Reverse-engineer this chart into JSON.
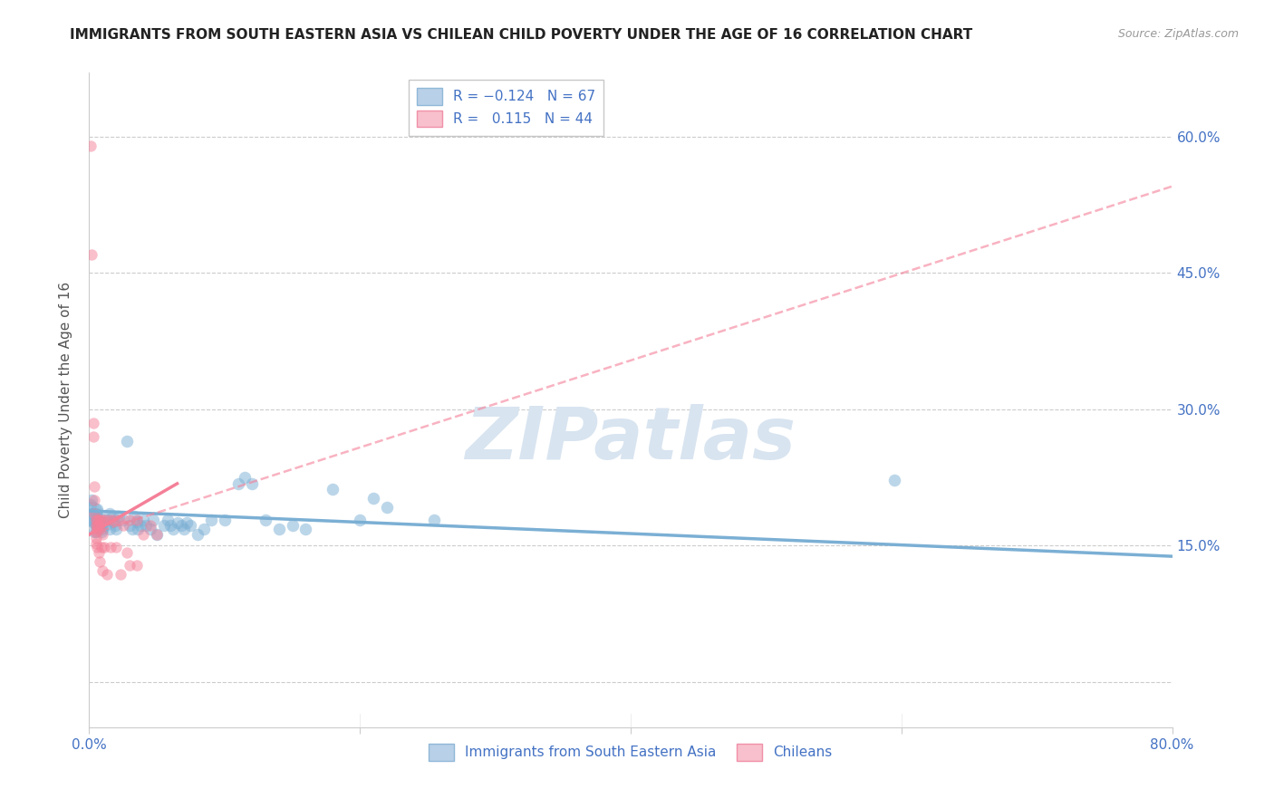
{
  "title": "IMMIGRANTS FROM SOUTH EASTERN ASIA VS CHILEAN CHILD POVERTY UNDER THE AGE OF 16 CORRELATION CHART",
  "source": "Source: ZipAtlas.com",
  "ylabel": "Child Poverty Under the Age of 16",
  "y_ticks": [
    0.0,
    0.15,
    0.3,
    0.45,
    0.6
  ],
  "y_tick_labels_right": [
    "",
    "15.0%",
    "30.0%",
    "45.0%",
    "60.0%"
  ],
  "xlim": [
    0.0,
    0.8
  ],
  "ylim": [
    -0.05,
    0.67
  ],
  "legend_label_blue": "Immigrants from South Eastern Asia",
  "legend_label_pink": "Chileans",
  "blue_color": "#7bafd4",
  "pink_color": "#f48098",
  "watermark": "ZIPatlas",
  "blue_scatter": [
    [
      0.001,
      0.195
    ],
    [
      0.002,
      0.2
    ],
    [
      0.002,
      0.185
    ],
    [
      0.003,
      0.175
    ],
    [
      0.003,
      0.185
    ],
    [
      0.004,
      0.175
    ],
    [
      0.004,
      0.165
    ],
    [
      0.005,
      0.185
    ],
    [
      0.005,
      0.175
    ],
    [
      0.005,
      0.165
    ],
    [
      0.006,
      0.18
    ],
    [
      0.006,
      0.19
    ],
    [
      0.007,
      0.175
    ],
    [
      0.007,
      0.17
    ],
    [
      0.008,
      0.18
    ],
    [
      0.008,
      0.17
    ],
    [
      0.009,
      0.175
    ],
    [
      0.009,
      0.165
    ],
    [
      0.01,
      0.175
    ],
    [
      0.01,
      0.168
    ],
    [
      0.012,
      0.172
    ],
    [
      0.013,
      0.178
    ],
    [
      0.015,
      0.168
    ],
    [
      0.015,
      0.185
    ],
    [
      0.017,
      0.182
    ],
    [
      0.018,
      0.176
    ],
    [
      0.019,
      0.172
    ],
    [
      0.02,
      0.168
    ],
    [
      0.022,
      0.182
    ],
    [
      0.025,
      0.178
    ],
    [
      0.028,
      0.265
    ],
    [
      0.03,
      0.172
    ],
    [
      0.032,
      0.168
    ],
    [
      0.033,
      0.182
    ],
    [
      0.035,
      0.176
    ],
    [
      0.036,
      0.168
    ],
    [
      0.038,
      0.172
    ],
    [
      0.04,
      0.178
    ],
    [
      0.042,
      0.172
    ],
    [
      0.045,
      0.168
    ],
    [
      0.047,
      0.178
    ],
    [
      0.05,
      0.162
    ],
    [
      0.055,
      0.172
    ],
    [
      0.058,
      0.178
    ],
    [
      0.06,
      0.172
    ],
    [
      0.062,
      0.168
    ],
    [
      0.065,
      0.175
    ],
    [
      0.068,
      0.172
    ],
    [
      0.07,
      0.168
    ],
    [
      0.072,
      0.175
    ],
    [
      0.075,
      0.172
    ],
    [
      0.08,
      0.162
    ],
    [
      0.085,
      0.168
    ],
    [
      0.09,
      0.178
    ],
    [
      0.1,
      0.178
    ],
    [
      0.11,
      0.218
    ],
    [
      0.115,
      0.225
    ],
    [
      0.12,
      0.218
    ],
    [
      0.13,
      0.178
    ],
    [
      0.14,
      0.168
    ],
    [
      0.15,
      0.172
    ],
    [
      0.16,
      0.168
    ],
    [
      0.18,
      0.212
    ],
    [
      0.2,
      0.178
    ],
    [
      0.21,
      0.202
    ],
    [
      0.22,
      0.192
    ],
    [
      0.255,
      0.178
    ],
    [
      0.595,
      0.222
    ]
  ],
  "blue_scatter_large": [
    [
      0.001,
      0.185
    ]
  ],
  "pink_scatter": [
    [
      0.001,
      0.59
    ],
    [
      0.002,
      0.47
    ],
    [
      0.003,
      0.285
    ],
    [
      0.003,
      0.27
    ],
    [
      0.004,
      0.215
    ],
    [
      0.004,
      0.2
    ],
    [
      0.004,
      0.185
    ],
    [
      0.005,
      0.178
    ],
    [
      0.005,
      0.172
    ],
    [
      0.005,
      0.165
    ],
    [
      0.005,
      0.158
    ],
    [
      0.005,
      0.152
    ],
    [
      0.006,
      0.178
    ],
    [
      0.006,
      0.172
    ],
    [
      0.006,
      0.168
    ],
    [
      0.006,
      0.148
    ],
    [
      0.007,
      0.178
    ],
    [
      0.007,
      0.172
    ],
    [
      0.007,
      0.142
    ],
    [
      0.008,
      0.178
    ],
    [
      0.008,
      0.168
    ],
    [
      0.008,
      0.132
    ],
    [
      0.009,
      0.148
    ],
    [
      0.01,
      0.178
    ],
    [
      0.01,
      0.162
    ],
    [
      0.01,
      0.122
    ],
    [
      0.011,
      0.148
    ],
    [
      0.012,
      0.178
    ],
    [
      0.013,
      0.118
    ],
    [
      0.015,
      0.178
    ],
    [
      0.016,
      0.148
    ],
    [
      0.018,
      0.178
    ],
    [
      0.02,
      0.148
    ],
    [
      0.022,
      0.178
    ],
    [
      0.023,
      0.118
    ],
    [
      0.025,
      0.172
    ],
    [
      0.028,
      0.142
    ],
    [
      0.03,
      0.178
    ],
    [
      0.03,
      0.128
    ],
    [
      0.035,
      0.178
    ],
    [
      0.035,
      0.128
    ],
    [
      0.04,
      0.162
    ],
    [
      0.045,
      0.172
    ],
    [
      0.05,
      0.162
    ]
  ],
  "blue_trendline": {
    "x_start": 0.0,
    "y_start": 0.188,
    "x_end": 0.8,
    "y_end": 0.138
  },
  "pink_trendline_solid": {
    "x_start": 0.0,
    "y_start": 0.162,
    "x_end": 0.065,
    "y_end": 0.218
  },
  "pink_trendline_dashed": {
    "x_start": 0.0,
    "y_start": 0.162,
    "x_end": 0.8,
    "y_end": 0.545
  },
  "title_fontsize": 11,
  "source_fontsize": 9,
  "axis_label_fontsize": 11,
  "tick_fontsize": 11,
  "legend_fontsize": 11,
  "background_color": "#ffffff",
  "grid_color": "#cccccc",
  "title_color": "#222222",
  "axis_color": "#4472c4",
  "watermark_color": "#d8e4f0",
  "scatter_size_blue": 95,
  "scatter_size_pink": 80,
  "scatter_alpha": 0.5
}
